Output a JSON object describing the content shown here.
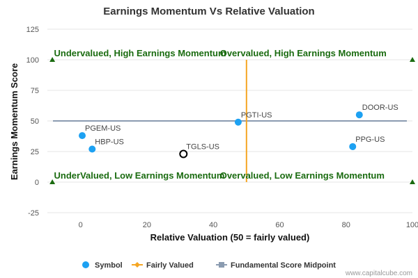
{
  "chart_data": {
    "type": "scatter",
    "title": "Earnings Momentum Vs Relative Valuation",
    "xlabel": "Relative Valuation (50 = fairly valued)",
    "ylabel": "Earnings Momentum Score",
    "xlim": [
      -10,
      100
    ],
    "ylim": [
      -25,
      125
    ],
    "xticks": [
      0,
      20,
      40,
      60,
      80,
      100
    ],
    "yticks": [
      -25,
      0,
      25,
      50,
      75,
      100,
      125
    ],
    "grid": "horizontal",
    "legend_position": "bottom",
    "points": [
      {
        "label": "PGEM-US",
        "x": 0.5,
        "y": 38
      },
      {
        "label": "HBP-US",
        "x": 3.5,
        "y": 27
      },
      {
        "label": "TGLS-US",
        "x": 31,
        "y": 23,
        "highlight": true
      },
      {
        "label": "PGTI-US",
        "x": 47.5,
        "y": 49
      },
      {
        "label": "DOOR-US",
        "x": 84,
        "y": 55
      },
      {
        "label": "PPG-US",
        "x": 82,
        "y": 29
      }
    ],
    "fairly_valued_x": 50,
    "midpoint_y": 50,
    "range_markers": [
      {
        "x": -8.5,
        "y": 100
      },
      {
        "x": 100,
        "y": 100
      },
      {
        "x": -8.5,
        "y": 0
      },
      {
        "x": 100,
        "y": 0
      }
    ],
    "quadrant_labels": [
      {
        "text": "Undervalued, High Earnings Momentum",
        "x": -8,
        "y": 100
      },
      {
        "text": "Overvalued, High Earnings Momentum",
        "x": 42,
        "y": 100
      },
      {
        "text": "UnderValued, Low Earnings Momentum",
        "x": -8,
        "y": 0
      },
      {
        "text": "Overvalued, Low Earnings Momentum",
        "x": 42,
        "y": 0
      }
    ],
    "legend": [
      {
        "name": "Symbol",
        "marker": "circle",
        "color": "#1da1f2"
      },
      {
        "name": "Fairly Valued",
        "marker": "line-diamond",
        "color": "#f5a623"
      },
      {
        "name": "Fundamental Score Midpoint",
        "marker": "line-square",
        "color": "#8a9bb0"
      }
    ],
    "colors": {
      "point": "#1da1f2",
      "highlight_stroke": "#000000",
      "fairly_valued": "#f5a623",
      "midpoint": "#8a9bb0",
      "quadrant_text": "#1a6b10",
      "range_marker": "#1a6b10",
      "grid": "#e6e6e6"
    }
  },
  "credit": "www.capitalcube.com"
}
